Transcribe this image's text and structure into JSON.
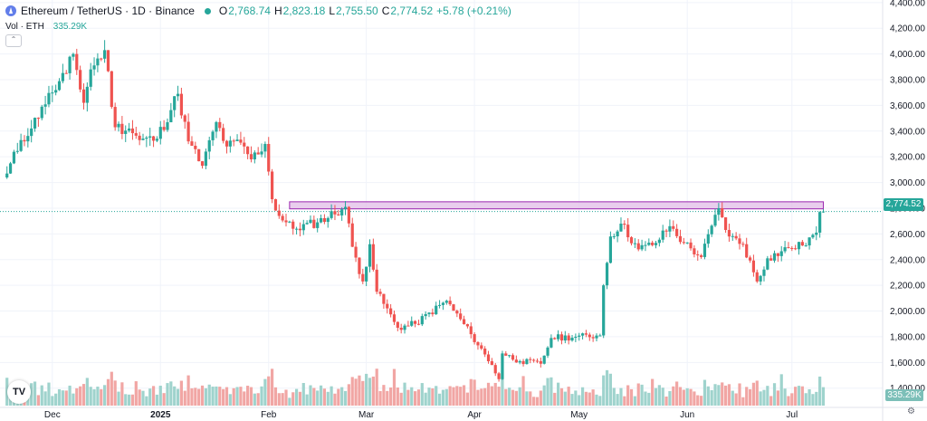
{
  "legend": {
    "symbol": "Ethereum / TetherUS · 1D · Binance",
    "o_label": "O",
    "o_value": "2,768.74",
    "h_label": "H",
    "h_value": "2,823.18",
    "l_label": "L",
    "l_value": "2,755.50",
    "c_label": "C",
    "c_value": "2,774.52",
    "change": "+5.78 (+0.21%)",
    "vol_label": "Vol · ETH",
    "vol_value": "335.29K",
    "collapse_icon": "chevron-up-icon"
  },
  "badges": {
    "last_price": "2,774.52",
    "last_volume": "335.29K"
  },
  "colors": {
    "up": "#26a69a",
    "down": "#ef5350",
    "vol_up": "#9fd3cd",
    "vol_down": "#f1a6a4",
    "zone_fill": "#e1bee7",
    "zone_stroke": "#9c27b0",
    "grid": "#f0f3fa"
  },
  "chart_data": {
    "type": "candlestick",
    "y_axis": {
      "ticks": [
        "4,400.00",
        "4,200.00",
        "4,000.00",
        "3,800.00",
        "3,600.00",
        "3,400.00",
        "3,200.00",
        "3,000.00",
        "2,800.00",
        "2,600.00",
        "2,400.00",
        "2,200.00",
        "2,000.00",
        "1,800.00",
        "1,600.00",
        "1,400.00"
      ],
      "tick_values": [
        4400,
        4200,
        4000,
        3800,
        3600,
        3400,
        3200,
        3000,
        2800,
        2600,
        2400,
        2200,
        2000,
        1800,
        1600,
        1400
      ],
      "range": [
        1250,
        4420
      ]
    },
    "x_axis": {
      "labels": [
        "Dec",
        "2025",
        "Feb",
        "Mar",
        "Apr",
        "May",
        "Jun",
        "Jul"
      ],
      "label_dates": [
        "2024-12-01",
        "2025-01-01",
        "2025-02-01",
        "2025-03-01",
        "2025-04-01",
        "2025-05-01",
        "2025-06-01",
        "2025-07-01"
      ],
      "range": [
        "2024-11-16",
        "2025-07-27"
      ]
    },
    "resistance_zone": {
      "start": "2025-02-07",
      "end": "2025-07-10",
      "price_low": 2795,
      "price_high": 2850
    },
    "last_close": 2774.52,
    "candles_start": "2024-11-18",
    "candles_end": "2025-07-10",
    "anchors": [
      {
        "date": "2024-11-18",
        "close": 3070
      },
      {
        "date": "2024-11-22",
        "close": 3330
      },
      {
        "date": "2024-11-25",
        "close": 3420
      },
      {
        "date": "2024-11-28",
        "close": 3590
      },
      {
        "date": "2024-12-01",
        "close": 3700
      },
      {
        "date": "2024-12-05",
        "close": 3850
      },
      {
        "date": "2024-12-07",
        "close": 4000
      },
      {
        "date": "2024-12-10",
        "close": 3620
      },
      {
        "date": "2024-12-12",
        "close": 3880
      },
      {
        "date": "2024-12-16",
        "close": 4030
      },
      {
        "date": "2024-12-19",
        "close": 3430
      },
      {
        "date": "2024-12-23",
        "close": 3420
      },
      {
        "date": "2024-12-26",
        "close": 3330
      },
      {
        "date": "2024-12-31",
        "close": 3340
      },
      {
        "date": "2025-01-06",
        "close": 3690
      },
      {
        "date": "2025-01-09",
        "close": 3320
      },
      {
        "date": "2025-01-13",
        "close": 3130
      },
      {
        "date": "2025-01-17",
        "close": 3470
      },
      {
        "date": "2025-01-20",
        "close": 3280
      },
      {
        "date": "2025-01-24",
        "close": 3310
      },
      {
        "date": "2025-01-27",
        "close": 3180
      },
      {
        "date": "2025-01-31",
        "close": 3300
      },
      {
        "date": "2025-02-02",
        "close": 2870
      },
      {
        "date": "2025-02-04",
        "close": 2740
      },
      {
        "date": "2025-02-08",
        "close": 2640
      },
      {
        "date": "2025-02-15",
        "close": 2690
      },
      {
        "date": "2025-02-23",
        "close": 2810
      },
      {
        "date": "2025-02-25",
        "close": 2500
      },
      {
        "date": "2025-02-28",
        "close": 2230
      },
      {
        "date": "2025-03-02",
        "close": 2520
      },
      {
        "date": "2025-03-04",
        "close": 2150
      },
      {
        "date": "2025-03-10",
        "close": 1870
      },
      {
        "date": "2025-03-15",
        "close": 1900
      },
      {
        "date": "2025-03-24",
        "close": 2080
      },
      {
        "date": "2025-03-31",
        "close": 1820
      },
      {
        "date": "2025-04-06",
        "close": 1580
      },
      {
        "date": "2025-04-08",
        "close": 1470
      },
      {
        "date": "2025-04-09",
        "close": 1670
      },
      {
        "date": "2025-04-14",
        "close": 1610
      },
      {
        "date": "2025-04-20",
        "close": 1590
      },
      {
        "date": "2025-04-23",
        "close": 1790
      },
      {
        "date": "2025-04-30",
        "close": 1800
      },
      {
        "date": "2025-05-07",
        "close": 1810
      },
      {
        "date": "2025-05-08",
        "close": 2200
      },
      {
        "date": "2025-05-10",
        "close": 2580
      },
      {
        "date": "2025-05-13",
        "close": 2680
      },
      {
        "date": "2025-05-18",
        "close": 2480
      },
      {
        "date": "2025-05-23",
        "close": 2530
      },
      {
        "date": "2025-05-27",
        "close": 2660
      },
      {
        "date": "2025-05-31",
        "close": 2530
      },
      {
        "date": "2025-06-05",
        "close": 2420
      },
      {
        "date": "2025-06-10",
        "close": 2800
      },
      {
        "date": "2025-06-13",
        "close": 2580
      },
      {
        "date": "2025-06-17",
        "close": 2520
      },
      {
        "date": "2025-06-21",
        "close": 2230
      },
      {
        "date": "2025-06-24",
        "close": 2410
      },
      {
        "date": "2025-06-30",
        "close": 2490
      },
      {
        "date": "2025-07-04",
        "close": 2510
      },
      {
        "date": "2025-07-08",
        "close": 2610
      },
      {
        "date": "2025-07-09",
        "close": 2770
      },
      {
        "date": "2025-07-10",
        "close": 2774.52
      }
    ]
  }
}
